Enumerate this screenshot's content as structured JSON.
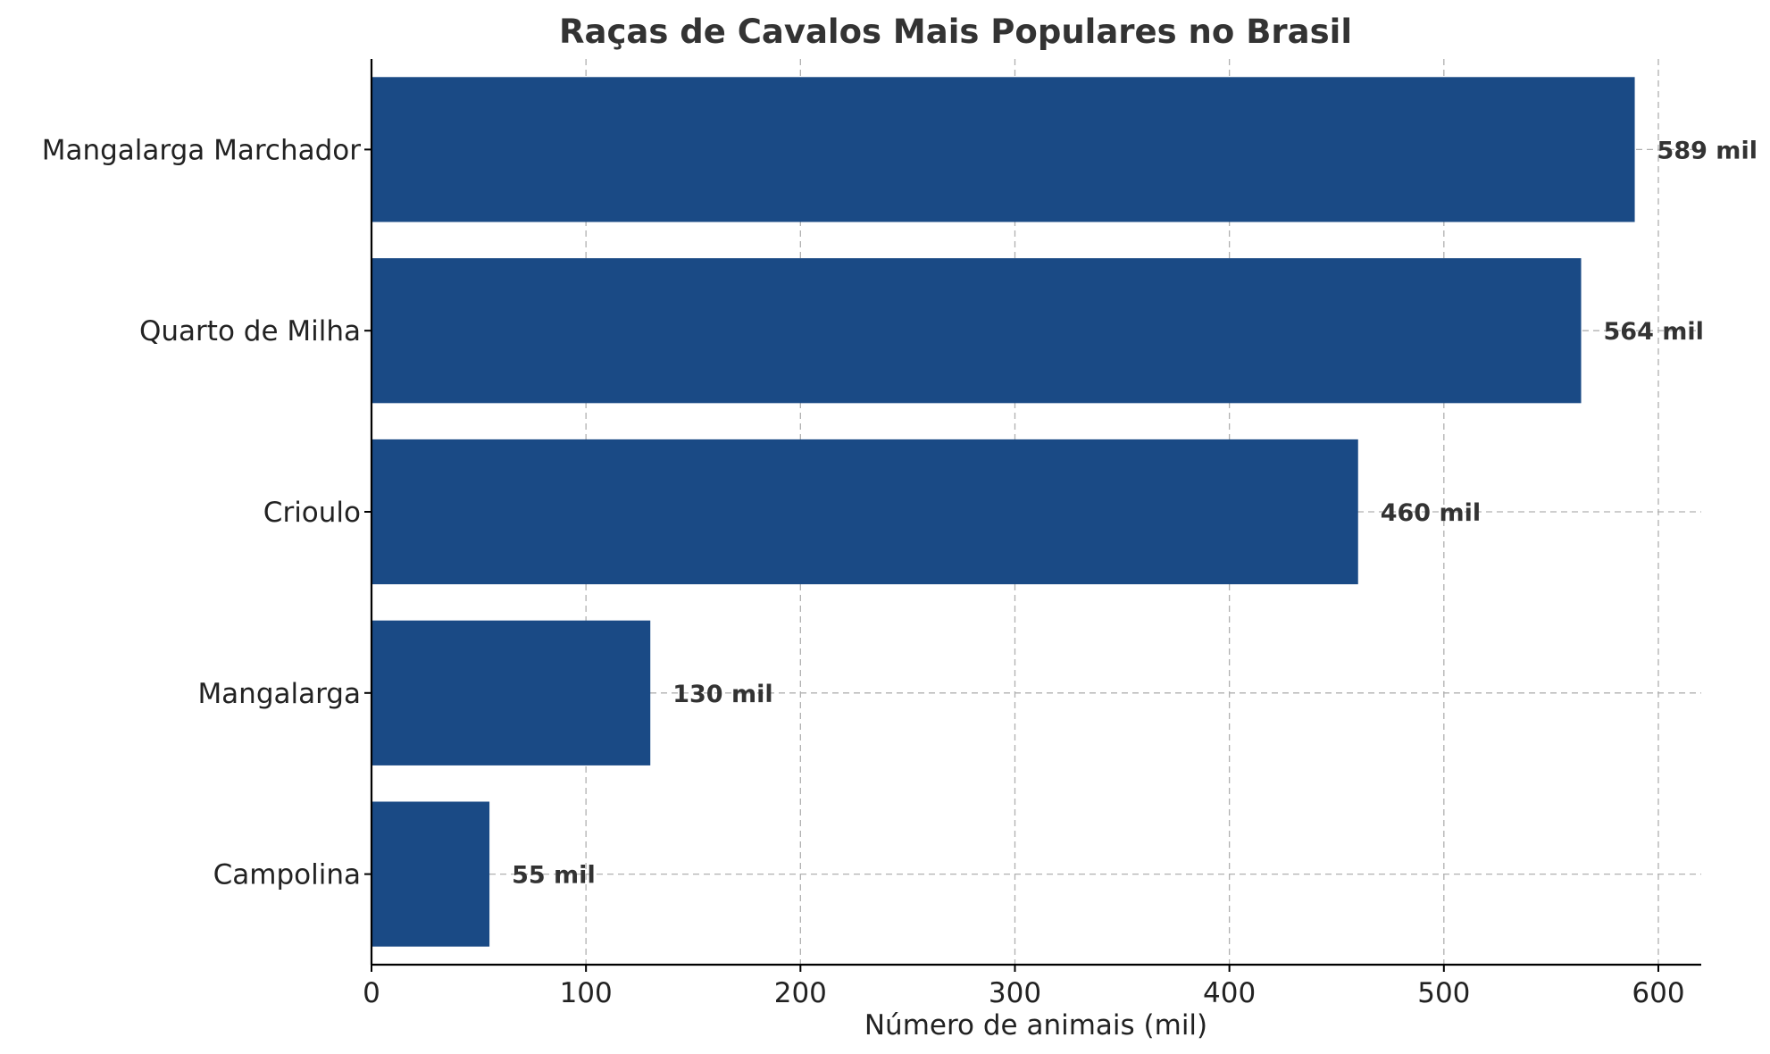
{
  "chart_data": {
    "type": "bar",
    "orientation": "horizontal",
    "title": "Raças de Cavalos Mais Populares no Brasil",
    "xlabel": "Número de animais (mil)",
    "ylabel": "",
    "categories": [
      "Mangalarga Marchador",
      "Quarto de Milha",
      "Crioulo",
      "Mangalarga",
      "Campolina"
    ],
    "values": [
      589,
      564,
      460,
      130,
      55
    ],
    "data_labels": [
      "589 mil",
      "564 mil",
      "460 mil",
      "130 mil",
      "55 mil"
    ],
    "xlim": [
      0,
      620
    ],
    "xticks": [
      0,
      100,
      200,
      300,
      400,
      500,
      600
    ],
    "xtick_labels": [
      "0",
      "100",
      "200",
      "300",
      "400",
      "500",
      "600"
    ],
    "grid": true,
    "bar_color": "#1a4a85",
    "grid_color": "#b0b0b0"
  }
}
